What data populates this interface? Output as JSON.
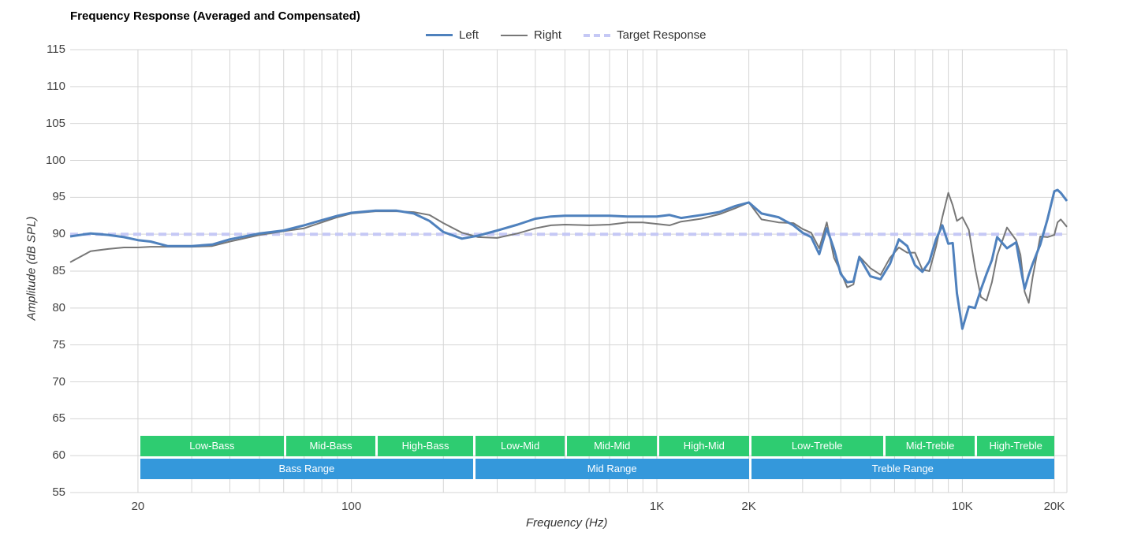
{
  "chart_data": {
    "type": "line",
    "title": "Frequency Response (Averaged and Compensated)",
    "xlabel": "Frequency (Hz)",
    "ylabel": "Amplitude (dB SPL)",
    "xscale": "log",
    "xlim": [
      12,
      22000
    ],
    "ylim": [
      55,
      115
    ],
    "yticks": [
      55,
      60,
      65,
      70,
      75,
      80,
      85,
      90,
      95,
      100,
      105,
      110,
      115
    ],
    "xtick_labels": [
      {
        "freq": 20,
        "label": "20"
      },
      {
        "freq": 100,
        "label": "100"
      },
      {
        "freq": 1000,
        "label": "1K"
      },
      {
        "freq": 2000,
        "label": "2K"
      },
      {
        "freq": 10000,
        "label": "10K"
      },
      {
        "freq": 20000,
        "label": "20K"
      }
    ],
    "grid_freqs": [
      20,
      30,
      40,
      50,
      60,
      70,
      80,
      90,
      100,
      200,
      300,
      400,
      500,
      600,
      700,
      800,
      900,
      1000,
      2000,
      3000,
      4000,
      5000,
      6000,
      7000,
      8000,
      9000,
      10000,
      20000
    ],
    "legend": [
      {
        "name": "Left",
        "style": "left"
      },
      {
        "name": "Right",
        "style": "right"
      },
      {
        "name": "Target Response",
        "style": "target"
      }
    ],
    "series": [
      {
        "name": "Left",
        "color": "#4f81bd",
        "x": [
          12,
          14,
          16,
          18,
          20,
          22,
          25,
          30,
          35,
          40,
          50,
          60,
          70,
          80,
          90,
          100,
          120,
          140,
          160,
          180,
          200,
          230,
          260,
          300,
          350,
          400,
          450,
          500,
          600,
          700,
          800,
          900,
          1000,
          1100,
          1200,
          1400,
          1600,
          1800,
          2000,
          2200,
          2500,
          2800,
          3000,
          3200,
          3400,
          3600,
          3800,
          4000,
          4200,
          4400,
          4600,
          5000,
          5400,
          5800,
          6200,
          6600,
          7000,
          7400,
          7800,
          8200,
          8600,
          9000,
          9300,
          9600,
          10000,
          10500,
          11000,
          11500,
          12000,
          12500,
          13000,
          14000,
          15000,
          15500,
          16000,
          16500,
          17000,
          18000,
          19000,
          20000,
          20500,
          21000,
          22000
        ],
        "values": [
          89.7,
          90.1,
          89.9,
          89.6,
          89.2,
          89.0,
          88.4,
          88.4,
          88.6,
          89.3,
          90.1,
          90.5,
          91.2,
          91.9,
          92.5,
          92.9,
          93.2,
          93.2,
          92.8,
          91.8,
          90.3,
          89.4,
          89.8,
          90.5,
          91.3,
          92.1,
          92.4,
          92.5,
          92.5,
          92.5,
          92.4,
          92.4,
          92.4,
          92.6,
          92.2,
          92.6,
          93.0,
          93.8,
          94.3,
          92.8,
          92.3,
          91.2,
          90.2,
          89.6,
          87.3,
          90.8,
          88.0,
          84.6,
          83.5,
          83.6,
          86.9,
          84.3,
          83.9,
          86.0,
          89.3,
          88.4,
          85.8,
          84.9,
          86.3,
          89.3,
          91.2,
          88.7,
          88.8,
          82.0,
          77.2,
          80.2,
          80.0,
          82.5,
          84.6,
          86.5,
          89.6,
          88.1,
          88.9,
          85.5,
          82.6,
          84.5,
          86.0,
          88.6,
          92.0,
          95.8,
          96.0,
          95.6,
          94.5
        ]
      },
      {
        "name": "Right",
        "color": "#777777",
        "x": [
          12,
          14,
          16,
          18,
          20,
          22,
          25,
          30,
          35,
          40,
          50,
          60,
          70,
          80,
          90,
          100,
          120,
          140,
          160,
          180,
          200,
          230,
          260,
          300,
          350,
          400,
          450,
          500,
          600,
          700,
          800,
          900,
          1000,
          1100,
          1200,
          1400,
          1600,
          1800,
          2000,
          2200,
          2500,
          2800,
          3000,
          3200,
          3400,
          3600,
          3800,
          4000,
          4200,
          4400,
          4600,
          5000,
          5400,
          5800,
          6200,
          6600,
          7000,
          7400,
          7800,
          8200,
          8600,
          9000,
          9300,
          9600,
          10000,
          10500,
          11000,
          11500,
          12000,
          12500,
          13000,
          14000,
          15000,
          15500,
          16000,
          16500,
          17000,
          18000,
          19000,
          20000,
          20500,
          21000,
          22000
        ],
        "values": [
          86.2,
          87.7,
          88.0,
          88.2,
          88.2,
          88.3,
          88.3,
          88.3,
          88.4,
          89.0,
          89.9,
          90.4,
          90.8,
          91.6,
          92.3,
          92.8,
          93.1,
          93.1,
          93.0,
          92.6,
          91.5,
          90.2,
          89.6,
          89.5,
          90.1,
          90.8,
          91.2,
          91.3,
          91.2,
          91.3,
          91.6,
          91.6,
          91.4,
          91.2,
          91.7,
          92.1,
          92.7,
          93.5,
          94.3,
          92.0,
          91.6,
          91.5,
          90.7,
          90.2,
          88.1,
          91.6,
          86.8,
          84.9,
          82.8,
          83.2,
          87.0,
          85.4,
          84.5,
          86.8,
          88.2,
          87.5,
          87.5,
          85.2,
          85.0,
          88.3,
          92.3,
          95.6,
          93.9,
          91.8,
          92.3,
          90.6,
          85.5,
          81.5,
          81.0,
          83.5,
          87.1,
          90.9,
          89.2,
          87.2,
          82.2,
          80.7,
          84.2,
          89.7,
          89.6,
          89.9,
          91.6,
          92.0,
          91.0
        ]
      },
      {
        "name": "Target Response",
        "color": "#c5c8f5",
        "x": [
          12,
          22000
        ],
        "values": [
          90,
          90
        ]
      }
    ],
    "bands_top": [
      {
        "label": "Low-Bass",
        "from": 20,
        "to": 60
      },
      {
        "label": "Mid-Bass",
        "from": 60,
        "to": 120
      },
      {
        "label": "High-Bass",
        "from": 120,
        "to": 250
      },
      {
        "label": "Low-Mid",
        "from": 250,
        "to": 500
      },
      {
        "label": "Mid-Mid",
        "from": 500,
        "to": 1000
      },
      {
        "label": "High-Mid",
        "from": 1000,
        "to": 2000
      },
      {
        "label": "Low-Treble",
        "from": 2000,
        "to": 5500
      },
      {
        "label": "Mid-Treble",
        "from": 5500,
        "to": 11000
      },
      {
        "label": "High-Treble",
        "from": 11000,
        "to": 20000
      }
    ],
    "bands_bottom": [
      {
        "label": "Bass Range",
        "from": 20,
        "to": 250
      },
      {
        "label": "Mid Range",
        "from": 250,
        "to": 2000
      },
      {
        "label": "Treble Range",
        "from": 2000,
        "to": 20000
      }
    ]
  }
}
